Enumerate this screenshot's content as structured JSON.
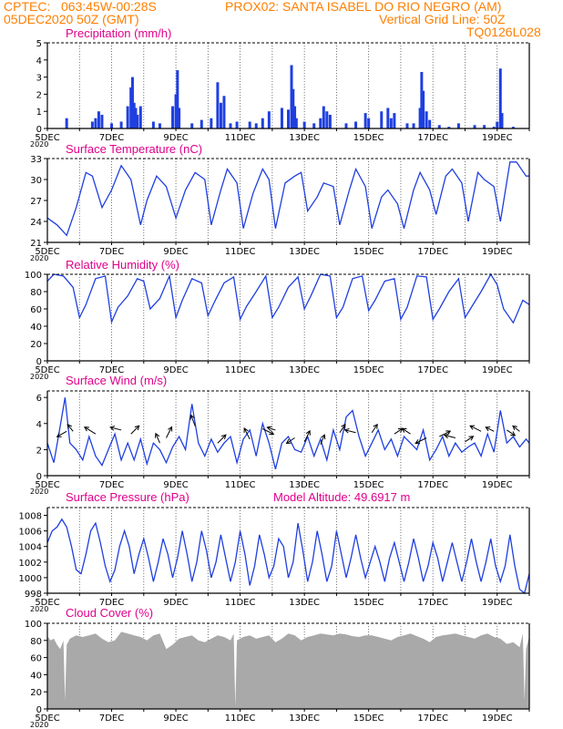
{
  "header": {
    "line1_left": "CPTEC:   063:45W-00:28S",
    "line1_right": "PROX02: SANTA ISABEL DO RIO NEGRO (AM)",
    "line2_left": "05DEC2020 50Z (GMT)",
    "line2_right": "Vertical Grid Line: 50Z",
    "line3_right": "TQ0126L028"
  },
  "colors": {
    "header": "#ff7f00",
    "title": "#e0008c",
    "series": "#1f3fe0",
    "cloud": "#a9a9a9"
  },
  "x_axis": {
    "labels": [
      "5DEC",
      "7DEC",
      "9DEC",
      "11DEC",
      "13DEC",
      "15DEC",
      "17DEC",
      "19DEC"
    ],
    "corner_label": "2020"
  },
  "chart_data": [
    {
      "type": "bar",
      "title": "Precipitation (mm/h)",
      "ylim": [
        0,
        5
      ],
      "yticks": [
        "0",
        "1",
        "2",
        "3",
        "4",
        "5"
      ],
      "x_range_days": [
        5,
        20
      ],
      "bars": [
        [
          5.6,
          0.6
        ],
        [
          6.4,
          0.4
        ],
        [
          6.5,
          0.6
        ],
        [
          6.6,
          1.0
        ],
        [
          6.7,
          0.8
        ],
        [
          7.0,
          0.3
        ],
        [
          7.3,
          0.4
        ],
        [
          7.5,
          1.3
        ],
        [
          7.6,
          2.4
        ],
        [
          7.65,
          3.0
        ],
        [
          7.7,
          1.5
        ],
        [
          7.75,
          1.2
        ],
        [
          7.8,
          0.8
        ],
        [
          7.9,
          1.3
        ],
        [
          8.3,
          0.4
        ],
        [
          8.5,
          0.3
        ],
        [
          8.9,
          1.3
        ],
        [
          9.0,
          2.0
        ],
        [
          9.05,
          3.4
        ],
        [
          9.1,
          1.2
        ],
        [
          9.5,
          0.3
        ],
        [
          9.8,
          0.5
        ],
        [
          10.1,
          0.6
        ],
        [
          10.3,
          2.7
        ],
        [
          10.4,
          1.5
        ],
        [
          10.5,
          1.9
        ],
        [
          10.7,
          0.3
        ],
        [
          10.9,
          0.4
        ],
        [
          11.3,
          0.4
        ],
        [
          11.5,
          0.3
        ],
        [
          11.7,
          0.6
        ],
        [
          11.9,
          1.0
        ],
        [
          12.3,
          1.2
        ],
        [
          12.5,
          1.1
        ],
        [
          12.6,
          3.7
        ],
        [
          12.65,
          2.3
        ],
        [
          12.7,
          1.3
        ],
        [
          12.75,
          0.6
        ],
        [
          13.0,
          0.4
        ],
        [
          13.3,
          0.3
        ],
        [
          13.5,
          0.6
        ],
        [
          13.6,
          1.3
        ],
        [
          13.7,
          1.0
        ],
        [
          13.8,
          0.8
        ],
        [
          14.3,
          0.3
        ],
        [
          14.6,
          0.4
        ],
        [
          14.9,
          0.9
        ],
        [
          15.0,
          0.6
        ],
        [
          15.4,
          1.0
        ],
        [
          15.6,
          1.2
        ],
        [
          15.7,
          0.6
        ],
        [
          15.8,
          0.9
        ],
        [
          16.2,
          0.3
        ],
        [
          16.4,
          0.3
        ],
        [
          16.6,
          1.2
        ],
        [
          16.65,
          3.3
        ],
        [
          16.7,
          2.2
        ],
        [
          16.8,
          1.0
        ],
        [
          16.9,
          0.5
        ],
        [
          17.2,
          0.2
        ],
        [
          17.5,
          0.1
        ],
        [
          17.8,
          0.3
        ],
        [
          18.3,
          0.2
        ],
        [
          18.6,
          0.2
        ],
        [
          18.9,
          0.1
        ],
        [
          19.0,
          0.4
        ],
        [
          19.1,
          3.5
        ],
        [
          19.15,
          0.9
        ],
        [
          19.5,
          0.1
        ]
      ]
    },
    {
      "type": "line",
      "title": "Surface Temperature (nC)",
      "ylim": [
        21,
        33
      ],
      "yticks": [
        "21",
        "24",
        "27",
        "30",
        "33"
      ],
      "x": [
        5.0,
        5.3,
        5.6,
        5.9,
        6.2,
        6.4,
        6.7,
        7.0,
        7.3,
        7.6,
        7.9,
        8.1,
        8.4,
        8.7,
        9.0,
        9.3,
        9.6,
        9.9,
        10.1,
        10.4,
        10.6,
        10.9,
        11.1,
        11.4,
        11.7,
        11.9,
        12.1,
        12.4,
        12.7,
        12.9,
        13.1,
        13.4,
        13.6,
        13.9,
        14.1,
        14.4,
        14.6,
        14.9,
        15.1,
        15.4,
        15.6,
        15.9,
        16.1,
        16.4,
        16.6,
        16.9,
        17.1,
        17.4,
        17.6,
        17.9,
        18.1,
        18.4,
        18.6,
        18.9,
        19.1,
        19.4,
        19.6,
        19.9,
        20.0
      ],
      "y": [
        24.5,
        23.5,
        22.0,
        26.0,
        31.0,
        30.5,
        26.0,
        28.5,
        32.0,
        30.0,
        23.5,
        27.0,
        30.5,
        29.0,
        24.5,
        28.5,
        31.0,
        30.0,
        23.5,
        28.5,
        31.5,
        29.5,
        23.0,
        28.0,
        31.5,
        30.0,
        23.0,
        29.5,
        30.5,
        31.0,
        25.5,
        27.5,
        29.5,
        29.0,
        23.5,
        28.5,
        31.5,
        29.0,
        23.0,
        27.5,
        28.5,
        26.5,
        23.0,
        28.5,
        31.0,
        28.5,
        25.0,
        30.5,
        31.5,
        29.5,
        24.0,
        31.0,
        30.0,
        29.0,
        24.0,
        32.5,
        32.5,
        30.5,
        30.5
      ]
    },
    {
      "type": "line",
      "title": "Relative Humidity (%)",
      "ylim": [
        0,
        100
      ],
      "yticks": [
        "0",
        "20",
        "40",
        "60",
        "80",
        "100"
      ],
      "x": [
        5.0,
        5.2,
        5.5,
        5.8,
        6.0,
        6.2,
        6.5,
        6.8,
        7.0,
        7.2,
        7.5,
        7.8,
        8.0,
        8.2,
        8.5,
        8.8,
        9.0,
        9.2,
        9.5,
        9.8,
        10.0,
        10.2,
        10.5,
        10.8,
        11.0,
        11.2,
        11.5,
        11.8,
        12.0,
        12.2,
        12.5,
        12.8,
        13.0,
        13.2,
        13.5,
        13.8,
        14.0,
        14.2,
        14.5,
        14.8,
        15.0,
        15.2,
        15.5,
        15.8,
        16.0,
        16.2,
        16.5,
        16.8,
        17.0,
        17.2,
        17.5,
        17.8,
        18.0,
        18.2,
        18.5,
        18.8,
        19.0,
        19.2,
        19.5,
        19.8,
        20.0
      ],
      "y": [
        92,
        100,
        98,
        85,
        50,
        65,
        95,
        98,
        45,
        62,
        75,
        95,
        92,
        60,
        72,
        98,
        50,
        70,
        95,
        90,
        52,
        68,
        90,
        97,
        48,
        63,
        80,
        98,
        50,
        62,
        85,
        97,
        60,
        75,
        100,
        98,
        50,
        62,
        95,
        98,
        58,
        70,
        92,
        95,
        48,
        62,
        98,
        97,
        48,
        60,
        80,
        95,
        50,
        62,
        80,
        100,
        88,
        60,
        44,
        70,
        65
      ]
    },
    {
      "type": "line",
      "title": "Surface Wind (m/s)",
      "ylim": [
        0,
        6.5
      ],
      "yticks": [
        "0",
        "2",
        "4",
        "6"
      ],
      "x": [
        5.0,
        5.2,
        5.4,
        5.55,
        5.7,
        5.9,
        6.1,
        6.3,
        6.5,
        6.7,
        6.9,
        7.1,
        7.3,
        7.5,
        7.7,
        7.9,
        8.1,
        8.3,
        8.5,
        8.7,
        8.9,
        9.1,
        9.3,
        9.5,
        9.7,
        9.9,
        10.1,
        10.3,
        10.5,
        10.7,
        10.9,
        11.1,
        11.3,
        11.5,
        11.7,
        11.9,
        12.1,
        12.3,
        12.5,
        12.7,
        12.9,
        13.1,
        13.3,
        13.5,
        13.7,
        13.9,
        14.1,
        14.3,
        14.5,
        14.7,
        14.9,
        15.1,
        15.3,
        15.5,
        15.7,
        15.9,
        16.1,
        16.3,
        16.5,
        16.7,
        16.9,
        17.1,
        17.3,
        17.5,
        17.7,
        17.9,
        18.1,
        18.3,
        18.5,
        18.7,
        18.9,
        19.1,
        19.3,
        19.5,
        19.7,
        19.9,
        20.0
      ],
      "y": [
        2.5,
        1.0,
        3.8,
        6.0,
        2.5,
        2.0,
        1.2,
        3.0,
        1.5,
        0.8,
        2.0,
        3.2,
        1.2,
        2.5,
        1.2,
        2.8,
        0.9,
        2.5,
        2.0,
        1.0,
        2.2,
        3.0,
        2.0,
        5.5,
        2.5,
        1.5,
        2.8,
        1.8,
        2.5,
        3.0,
        1.0,
        2.8,
        3.5,
        1.5,
        4.0,
        2.5,
        0.5,
        2.5,
        3.0,
        2.0,
        1.8,
        3.0,
        1.5,
        2.8,
        1.2,
        3.5,
        2.0,
        4.5,
        5.0,
        3.0,
        1.5,
        2.5,
        3.5,
        2.0,
        2.8,
        1.5,
        3.0,
        2.5,
        2.0,
        3.5,
        1.2,
        2.0,
        3.0,
        1.5,
        2.5,
        1.8,
        2.2,
        2.5,
        1.5,
        3.2,
        1.8,
        5.0,
        2.5,
        3.0,
        2.2,
        2.8,
        2.5
      ],
      "arrows": [
        [
          5.6,
          3.4,
          -0.35,
          -0.2
        ],
        [
          5.8,
          3.4,
          -0.2,
          0.25
        ],
        [
          6.5,
          3.2,
          -0.4,
          0.25
        ],
        [
          7.3,
          3.5,
          -0.4,
          0.1
        ],
        [
          7.6,
          3.2,
          0.3,
          0.3
        ],
        [
          8.5,
          2.5,
          -0.15,
          0.35
        ],
        [
          8.7,
          2.9,
          0.2,
          0.4
        ],
        [
          9.6,
          3.8,
          -0.15,
          0.4
        ],
        [
          10.3,
          2.5,
          0.3,
          0.3
        ],
        [
          11.3,
          2.8,
          -0.2,
          0.4
        ],
        [
          11.7,
          3.6,
          0.4,
          -0.2
        ],
        [
          12.1,
          3.5,
          -0.3,
          0.1
        ],
        [
          12.7,
          2.9,
          -0.3,
          -0.2
        ],
        [
          13.0,
          2.6,
          0.2,
          0.4
        ],
        [
          13.5,
          2.4,
          0.15,
          0.35
        ],
        [
          14.1,
          3.3,
          0.2,
          0.3
        ],
        [
          14.6,
          3.3,
          -0.4,
          0.1
        ],
        [
          15.1,
          3.3,
          0.2,
          0.3
        ],
        [
          15.8,
          3.2,
          0.3,
          0.2
        ],
        [
          16.3,
          3.2,
          -0.3,
          0.2
        ],
        [
          16.8,
          2.9,
          -0.4,
          -0.2
        ],
        [
          17.2,
          3.0,
          0.4,
          0.2
        ],
        [
          17.7,
          2.9,
          -0.4,
          0.1
        ],
        [
          18.0,
          2.6,
          0.3,
          0.2
        ],
        [
          18.5,
          3.4,
          -0.4,
          0.2
        ],
        [
          18.9,
          3.4,
          -0.3,
          0.15
        ],
        [
          19.3,
          3.5,
          0.3,
          -0.2
        ],
        [
          19.7,
          3.4,
          -0.25,
          0.2
        ]
      ]
    },
    {
      "type": "line",
      "title": "Surface Pressure (hPa)",
      "subtitle": "Model Altitude: 49.6917 m",
      "ylim": [
        998,
        1009
      ],
      "yticks": [
        "998",
        "1000",
        "1002",
        "1004",
        "1006",
        "1008"
      ],
      "x": [
        5.0,
        5.15,
        5.3,
        5.45,
        5.6,
        5.75,
        5.9,
        6.05,
        6.2,
        6.35,
        6.5,
        6.65,
        6.8,
        6.95,
        7.1,
        7.25,
        7.4,
        7.55,
        7.7,
        7.85,
        8.0,
        8.15,
        8.3,
        8.45,
        8.6,
        8.75,
        8.9,
        9.05,
        9.2,
        9.35,
        9.5,
        9.65,
        9.8,
        9.95,
        10.1,
        10.25,
        10.4,
        10.55,
        10.7,
        10.85,
        11.0,
        11.15,
        11.3,
        11.45,
        11.6,
        11.75,
        11.9,
        12.05,
        12.2,
        12.35,
        12.5,
        12.65,
        12.8,
        12.95,
        13.1,
        13.25,
        13.4,
        13.55,
        13.7,
        13.85,
        14.0,
        14.15,
        14.3,
        14.45,
        14.6,
        14.75,
        14.9,
        15.05,
        15.2,
        15.35,
        15.5,
        15.65,
        15.8,
        15.95,
        16.1,
        16.25,
        16.4,
        16.55,
        16.7,
        16.85,
        17.0,
        17.15,
        17.3,
        17.45,
        17.6,
        17.75,
        17.9,
        18.05,
        18.2,
        18.35,
        18.5,
        18.65,
        18.8,
        18.95,
        19.1,
        19.25,
        19.4,
        19.55,
        19.7,
        19.85,
        20.0
      ],
      "y": [
        1004.5,
        1006,
        1006.5,
        1007.5,
        1006.5,
        1004,
        1001,
        1000.5,
        1003,
        1006,
        1007,
        1004.5,
        1001.5,
        999.5,
        1001,
        1004,
        1006,
        1004,
        1000.5,
        1003,
        1005,
        1002.5,
        999.5,
        1002,
        1005,
        1003,
        1000,
        1002.5,
        1006,
        1003,
        999.5,
        1002,
        1006,
        1003.5,
        1000,
        1002,
        1005.5,
        1002.5,
        999.5,
        1002,
        1006,
        1003,
        999,
        1001.5,
        1005.5,
        1003,
        1000,
        1001.5,
        1005,
        1004,
        1000,
        1002,
        1007,
        1003.5,
        999.5,
        1002,
        1006,
        1003,
        999.5,
        1001.5,
        1006,
        1003,
        1000,
        1002.5,
        1005.5,
        1002.5,
        1000,
        1002,
        1004,
        1002,
        999.5,
        1002.5,
        1004.5,
        1002,
        999.5,
        1002,
        1005,
        1002.5,
        999.5,
        1001.5,
        1004.5,
        1002.5,
        999.5,
        1002,
        1004.5,
        1002,
        999.5,
        1002,
        1005,
        1002,
        999.5,
        1002,
        1005,
        1001.5,
        999.5,
        1001.5,
        1005.5,
        1001.5,
        998.5,
        998.0,
        1000.5
      ]
    },
    {
      "type": "area",
      "title": "Cloud Cover (%)",
      "ylim": [
        0,
        100
      ],
      "yticks": [
        "0",
        "20",
        "40",
        "60",
        "80",
        "100"
      ],
      "x": [
        5.0,
        5.1,
        5.2,
        5.3,
        5.4,
        5.5,
        5.55,
        5.6,
        5.7,
        5.9,
        6.1,
        6.3,
        6.5,
        6.7,
        6.9,
        7.1,
        7.3,
        7.5,
        7.7,
        7.9,
        8.1,
        8.3,
        8.5,
        8.7,
        8.9,
        9.1,
        9.3,
        9.5,
        9.7,
        9.9,
        10.1,
        10.3,
        10.5,
        10.7,
        10.8,
        10.85,
        10.9,
        11.1,
        11.3,
        11.5,
        11.7,
        11.9,
        12.1,
        12.3,
        12.5,
        12.7,
        12.9,
        13.1,
        13.3,
        13.5,
        13.7,
        13.9,
        14.1,
        14.3,
        14.5,
        14.7,
        14.9,
        15.1,
        15.3,
        15.5,
        15.7,
        15.9,
        16.1,
        16.3,
        16.5,
        16.7,
        16.9,
        17.1,
        17.3,
        17.5,
        17.7,
        17.9,
        18.1,
        18.3,
        18.5,
        18.7,
        18.9,
        19.1,
        19.3,
        19.5,
        19.7,
        19.8,
        19.85,
        19.9,
        20.0
      ],
      "y": [
        85,
        80,
        82,
        75,
        70,
        80,
        10,
        75,
        82,
        86,
        84,
        86,
        88,
        82,
        78,
        80,
        90,
        88,
        86,
        84,
        80,
        86,
        88,
        70,
        75,
        82,
        84,
        86,
        80,
        78,
        82,
        86,
        84,
        80,
        88,
        3,
        80,
        84,
        86,
        82,
        84,
        86,
        78,
        82,
        88,
        86,
        80,
        84,
        86,
        88,
        87,
        86,
        88,
        87,
        85,
        84,
        86,
        86,
        84,
        82,
        80,
        84,
        86,
        88,
        85,
        82,
        78,
        84,
        86,
        87,
        88,
        86,
        84,
        82,
        86,
        88,
        84,
        82,
        76,
        78,
        72,
        88,
        10,
        70,
        85
      ]
    }
  ]
}
